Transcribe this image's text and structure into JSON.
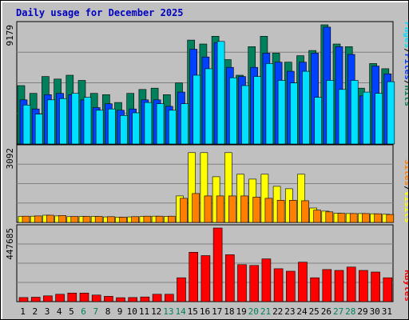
{
  "title": "Daily usage for December 2025",
  "chart_data": [
    {
      "type": "bar",
      "name": "hits-files-pages",
      "axis_max_label": "9179",
      "ylim": [
        0,
        9179
      ],
      "series": [
        {
          "name": "Hits",
          "color": "#00805c",
          "values": [
            4500,
            3900,
            5200,
            5000,
            5300,
            4900,
            3900,
            3800,
            3200,
            3900,
            4200,
            4300,
            3800,
            4700,
            8000,
            7700,
            8300,
            6500,
            5300,
            7500,
            8300,
            7000,
            6300,
            6800,
            7200,
            9179,
            7700,
            7500,
            4300,
            6200,
            5800
          ]
        },
        {
          "name": "Files",
          "color": "#0040ff",
          "values": [
            3400,
            2700,
            3800,
            3900,
            3800,
            3400,
            2800,
            3100,
            2600,
            2700,
            3400,
            3400,
            2900,
            4000,
            7300,
            6700,
            7800,
            5900,
            5200,
            5900,
            7000,
            6300,
            5600,
            6300,
            7000,
            9000,
            7500,
            6900,
            3700,
            6000,
            5400
          ]
        },
        {
          "name": "Pages",
          "color": "#00e0ff",
          "values": [
            3000,
            2300,
            3400,
            3500,
            3900,
            3600,
            2600,
            2700,
            2200,
            2400,
            3200,
            3100,
            2600,
            3100,
            5300,
            5800,
            7900,
            5100,
            4500,
            5200,
            6200,
            4900,
            4700,
            5600,
            3600,
            4900,
            4200,
            4900,
            4000,
            3900,
            4800
          ]
        }
      ]
    },
    {
      "type": "bar",
      "name": "visits-sites",
      "axis_max_label": "3092",
      "ylim": [
        0,
        3092
      ],
      "series": [
        {
          "name": "Visits",
          "color": "#ffff00",
          "values": [
            250,
            260,
            300,
            270,
            240,
            250,
            250,
            230,
            220,
            230,
            250,
            260,
            250,
            1100,
            2900,
            2900,
            1900,
            2900,
            2000,
            1800,
            2000,
            1500,
            1400,
            2000,
            600,
            470,
            380,
            370,
            370,
            360,
            340
          ]
        },
        {
          "name": "Sites",
          "color": "#ff8000",
          "values": [
            260,
            270,
            300,
            290,
            250,
            250,
            250,
            240,
            220,
            240,
            260,
            260,
            260,
            1000,
            1200,
            1100,
            1100,
            1100,
            1100,
            1050,
            1000,
            920,
            920,
            900,
            510,
            440,
            380,
            370,
            370,
            360,
            330
          ]
        }
      ]
    },
    {
      "type": "bar",
      "name": "kbytes",
      "axis_max_label": "447685",
      "ylim": [
        0,
        447685
      ],
      "series": [
        {
          "name": "KBytes",
          "color": "#ff0000",
          "values": [
            25000,
            27000,
            35000,
            45000,
            52000,
            52000,
            40000,
            32000,
            24000,
            25000,
            28000,
            45000,
            45000,
            145000,
            300000,
            280000,
            447685,
            285000,
            225000,
            220000,
            260000,
            200000,
            185000,
            240000,
            145000,
            195000,
            190000,
            210000,
            190000,
            180000,
            145000
          ]
        }
      ]
    }
  ],
  "days": [
    "1",
    "2",
    "3",
    "4",
    "5",
    "6",
    "7",
    "8",
    "9",
    "10",
    "11",
    "12",
    "13",
    "14",
    "15",
    "16",
    "17",
    "18",
    "19",
    "20",
    "21",
    "22",
    "23",
    "24",
    "25",
    "26",
    "27",
    "28",
    "29",
    "30",
    "31"
  ],
  "weekend_days": [
    6,
    7,
    13,
    14,
    20,
    21,
    27,
    28
  ],
  "day_label_colors": {
    "weekday": "#000000",
    "weekend": "#00805c"
  },
  "legends": [
    {
      "name": "top",
      "parts": [
        {
          "text": "Pages",
          "color": "#00e0ff"
        },
        {
          "text": "/",
          "color": "#000000"
        },
        {
          "text": "Files",
          "color": "#0040ff"
        },
        {
          "text": "/",
          "color": "#000000"
        },
        {
          "text": "Hits",
          "color": "#00805c"
        }
      ]
    },
    {
      "name": "middle",
      "parts": [
        {
          "text": "Sites",
          "color": "#ff8000"
        },
        {
          "text": "/",
          "color": "#000000"
        },
        {
          "text": "Visits",
          "color": "#ffff00"
        }
      ]
    },
    {
      "name": "bottom",
      "parts": [
        {
          "text": "KBytes",
          "color": "#ff0000"
        }
      ]
    }
  ]
}
